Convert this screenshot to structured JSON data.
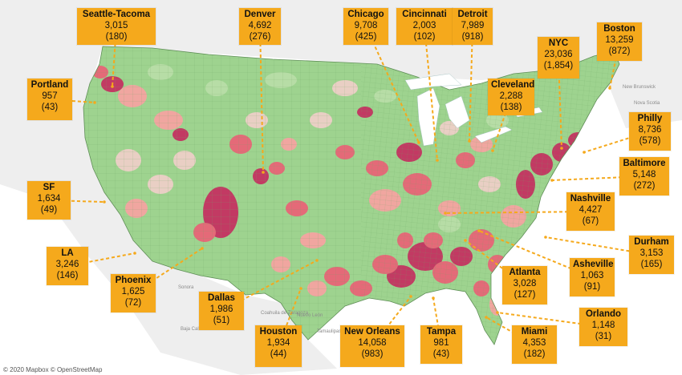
{
  "map": {
    "attribution": "© 2020 Mapbox © OpenStreetMap",
    "colors": {
      "ocean": "#ffffff",
      "land_outside": "#eeeeee",
      "low": "#9ed38f",
      "low_alt": "#b7dda6",
      "neutral": "#e9cfc4",
      "mid": "#f0a6a0",
      "high": "#e46a78",
      "very_high": "#c23a63",
      "callout": "#f5a91c",
      "leader_line": "#f5a91c"
    },
    "background_labels": [
      {
        "text": "New Brunswick"
      },
      {
        "text": "Nova Scotia"
      },
      {
        "text": "Baja California"
      },
      {
        "text": "Sonora"
      },
      {
        "text": "Coahuila de Zaragoza"
      },
      {
        "text": "Nuevo León"
      },
      {
        "text": "Tamaulipas"
      }
    ],
    "cities": [
      {
        "name": "Seattle-Tacoma",
        "count": "3,015",
        "deaths": "(180)"
      },
      {
        "name": "Portland",
        "count": "957",
        "deaths": "(43)"
      },
      {
        "name": "Denver",
        "count": "4,692",
        "deaths": "(276)"
      },
      {
        "name": "Chicago",
        "count": "9,708",
        "deaths": "(425)"
      },
      {
        "name": "Cincinnati",
        "count": "2,003",
        "deaths": "(102)"
      },
      {
        "name": "Detroit",
        "count": "7,989",
        "deaths": "(918)"
      },
      {
        "name": "NYC",
        "count": "23,036",
        "deaths": "(1,854)"
      },
      {
        "name": "Boston",
        "count": "13,259",
        "deaths": "(872)"
      },
      {
        "name": "Cleveland",
        "count": "2,288",
        "deaths": "(138)"
      },
      {
        "name": "Philly",
        "count": "8,736",
        "deaths": "(578)"
      },
      {
        "name": "Baltimore",
        "count": "5,148",
        "deaths": "(272)"
      },
      {
        "name": "SF",
        "count": "1,634",
        "deaths": "(49)"
      },
      {
        "name": "Nashville",
        "count": "4,427",
        "deaths": "(67)"
      },
      {
        "name": "LA",
        "count": "3,246",
        "deaths": "(146)"
      },
      {
        "name": "Durham",
        "count": "3,153",
        "deaths": "(165)"
      },
      {
        "name": "Asheville",
        "count": "1,063",
        "deaths": "(91)"
      },
      {
        "name": "Phoenix",
        "count": "1,625",
        "deaths": "(72)"
      },
      {
        "name": "Atlanta",
        "count": "3,028",
        "deaths": "(127)"
      },
      {
        "name": "Dallas",
        "count": "1,986",
        "deaths": "(51)"
      },
      {
        "name": "Orlando",
        "count": "1,148",
        "deaths": "(31)"
      },
      {
        "name": "Houston",
        "count": "1,934",
        "deaths": "(44)"
      },
      {
        "name": "New Orleans",
        "count": "14,058",
        "deaths": "(983)"
      },
      {
        "name": "Tampa",
        "count": "981",
        "deaths": "(43)"
      },
      {
        "name": "Miami",
        "count": "4,353",
        "deaths": "(182)"
      }
    ]
  }
}
